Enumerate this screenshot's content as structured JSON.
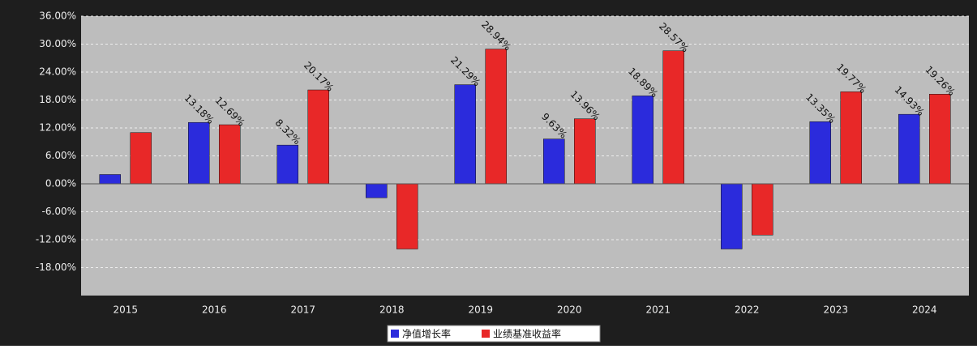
{
  "chart_data": {
    "type": "bar",
    "categories": [
      "2015",
      "2016",
      "2017",
      "2018",
      "2019",
      "2020",
      "2021",
      "2022",
      "2023",
      "2024"
    ],
    "series": [
      {
        "name": "净值增长率",
        "color": "#2b2bdc",
        "values": [
          2,
          13.18,
          8.32,
          -3,
          21.29,
          9.63,
          18.89,
          -14,
          13.35,
          14.93
        ],
        "value_labels": [
          null,
          "13.18%",
          "8.32%",
          null,
          "21.29%",
          "9.63%",
          "18.89%",
          null,
          "13.35%",
          "14.93%"
        ]
      },
      {
        "name": "业绩基准收益率",
        "color": "#e82828",
        "values": [
          11,
          12.69,
          20.17,
          -14,
          28.94,
          13.96,
          28.57,
          -11,
          19.77,
          19.26
        ],
        "value_labels": [
          null,
          "12.69%",
          "20.17%",
          null,
          "28.94%",
          "13.96%",
          "28.57%",
          null,
          "19.77%",
          "19.26%"
        ]
      }
    ],
    "ylim": [
      -24,
      36
    ],
    "yticks": [
      {
        "value": -18,
        "label": "-18.00%"
      },
      {
        "value": -12,
        "label": "-12.00%"
      },
      {
        "value": -6,
        "label": "-6.00%"
      },
      {
        "value": 0,
        "label": "0.00%"
      },
      {
        "value": 6,
        "label": "6.00%"
      },
      {
        "value": 12,
        "label": "12.00%"
      },
      {
        "value": 18,
        "label": "18.00%"
      },
      {
        "value": 24,
        "label": "24.00%"
      },
      {
        "value": 30,
        "label": "30.00%"
      },
      {
        "value": 36,
        "label": "36.00%"
      }
    ],
    "grid": true
  }
}
